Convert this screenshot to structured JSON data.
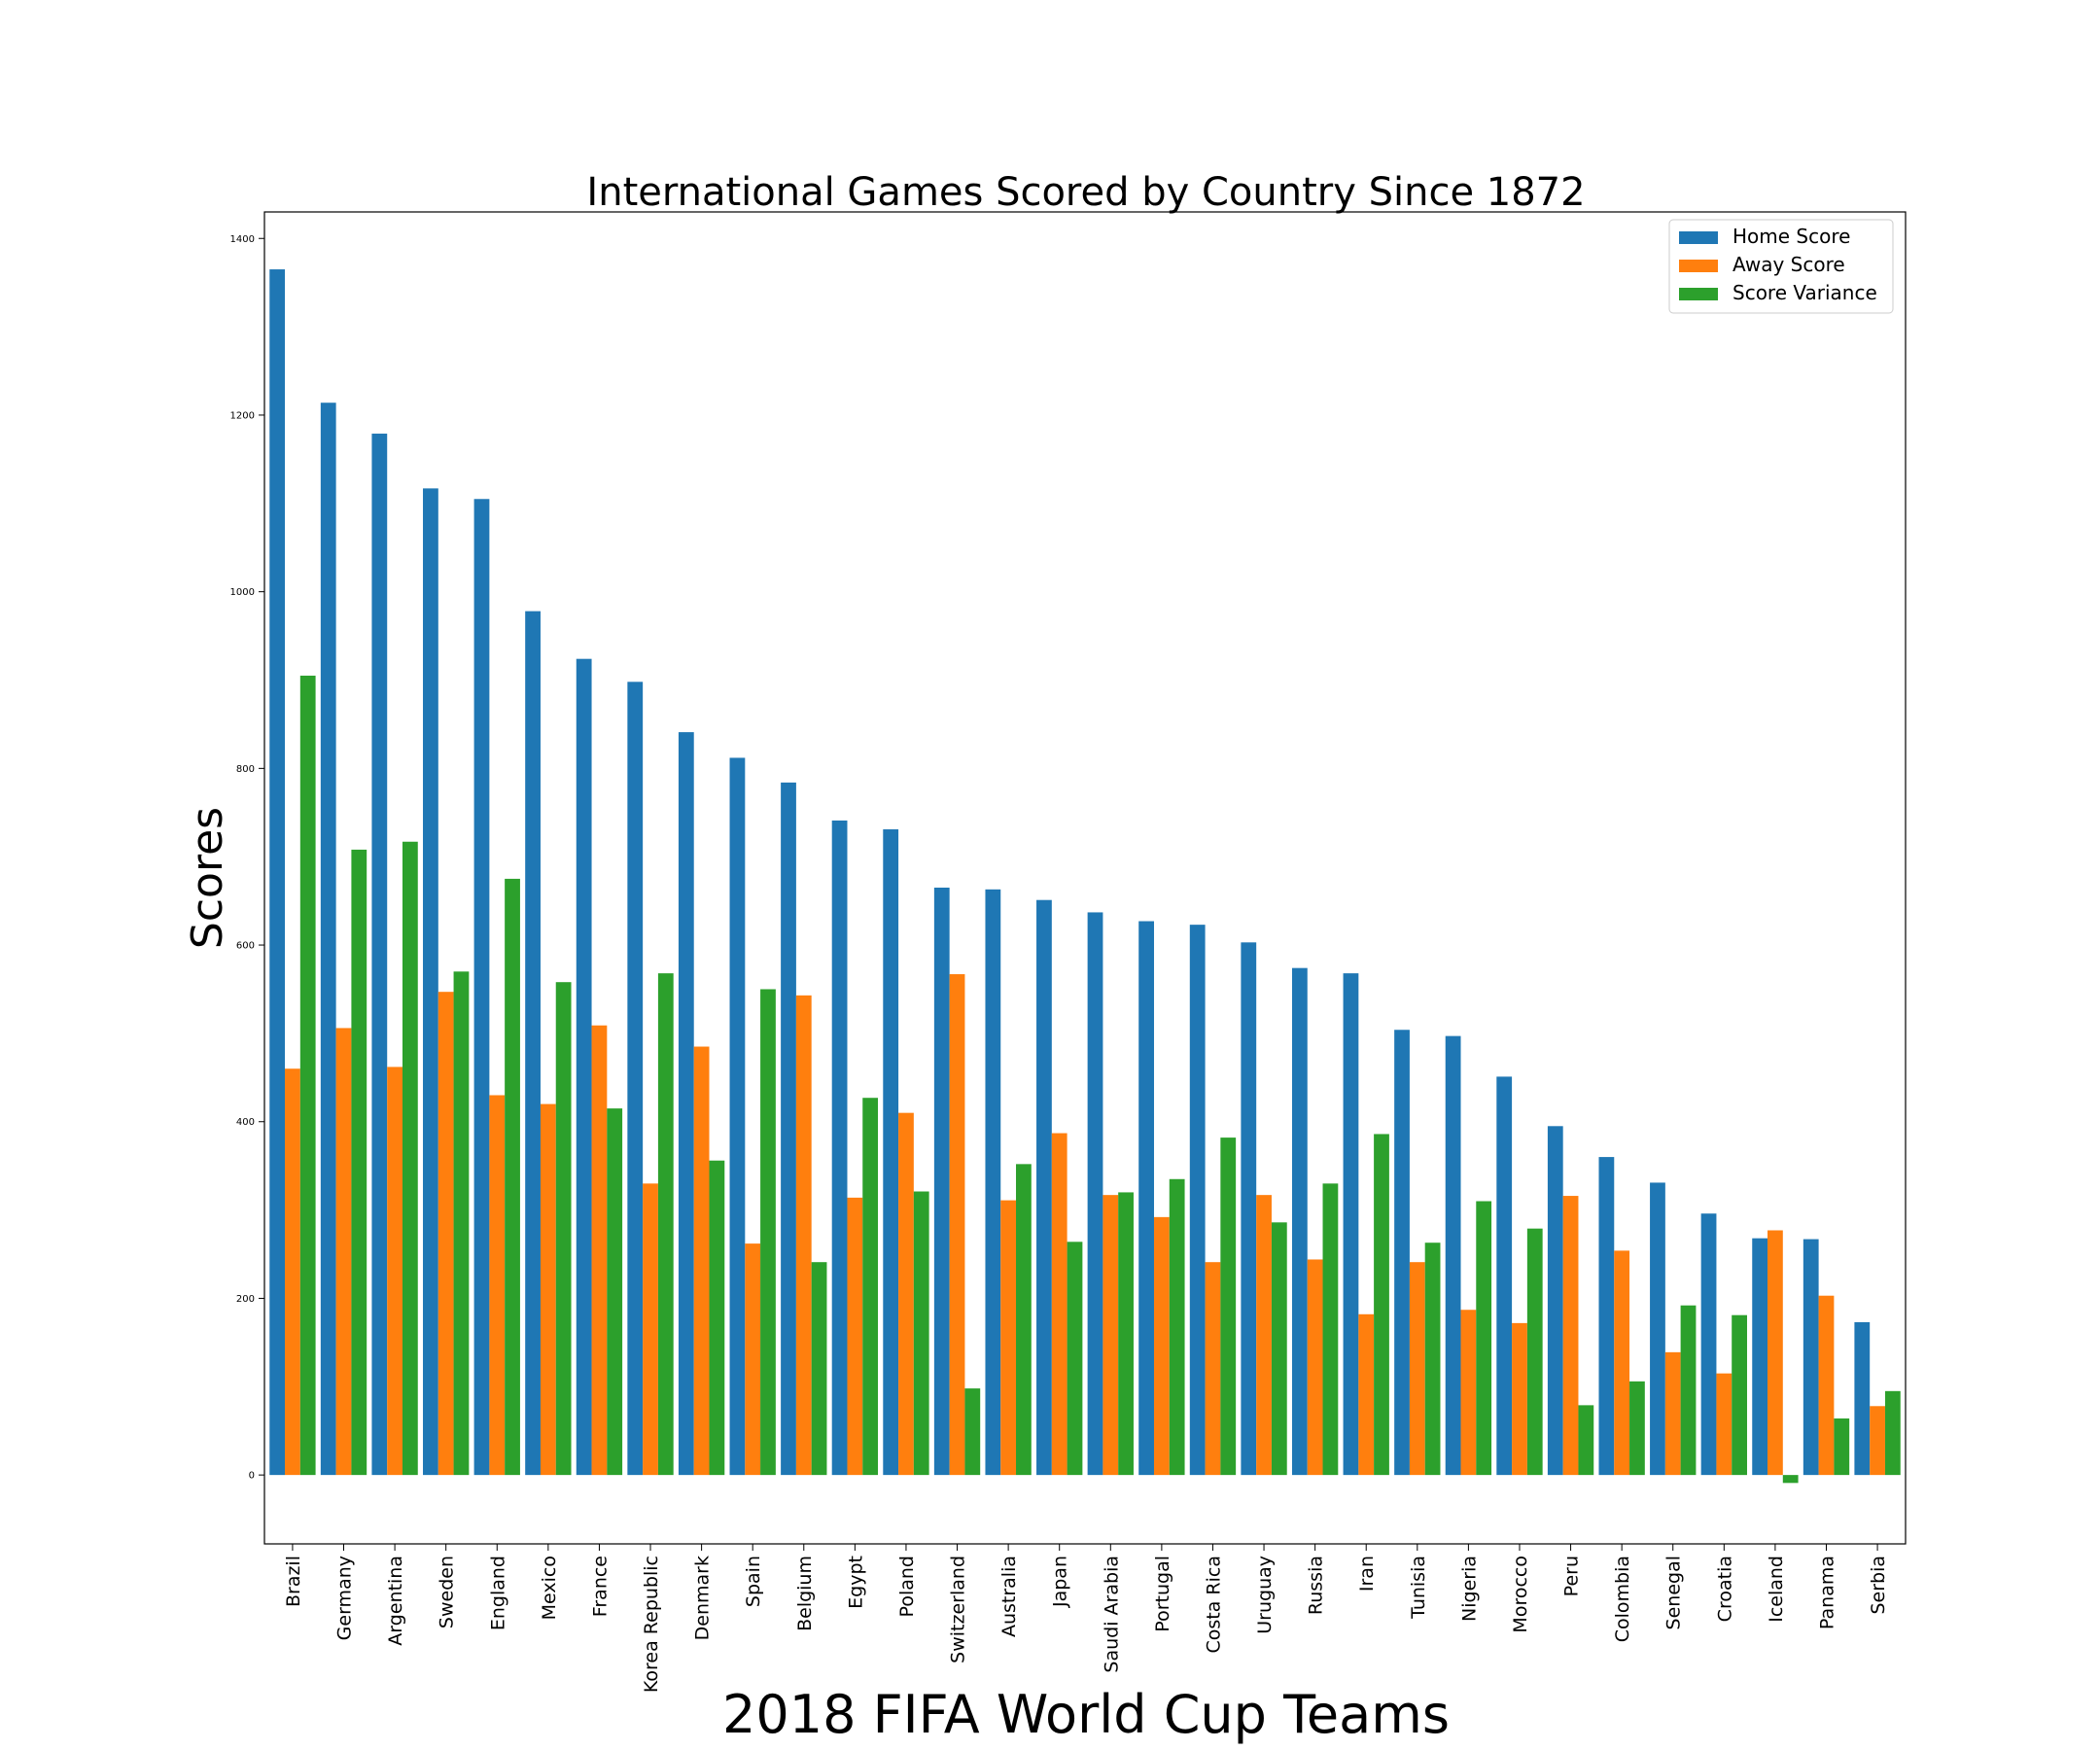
{
  "chart_data": {
    "type": "bar",
    "title": "International Games Scored by Country Since 1872",
    "xlabel": "2018 FIFA World Cup Teams",
    "ylabel": "Scores",
    "ylim": [
      -78,
      1430
    ],
    "yticks": [
      0,
      200,
      400,
      600,
      800,
      1000,
      1200,
      1400
    ],
    "legend_position": "top-right",
    "grid": false,
    "categories": [
      "Brazil",
      "Germany",
      "Argentina",
      "Sweden",
      "England",
      "Mexico",
      "France",
      "Korea Republic",
      "Denmark",
      "Spain",
      "Belgium",
      "Egypt",
      "Poland",
      "Switzerland",
      "Australia",
      "Japan",
      "Saudi Arabia",
      "Portugal",
      "Costa Rica",
      "Uruguay",
      "Russia",
      "Iran",
      "Tunisia",
      "Nigeria",
      "Morocco",
      "Peru",
      "Colombia",
      "Senegal",
      "Croatia",
      "Iceland",
      "Panama",
      "Serbia"
    ],
    "series": [
      {
        "name": "Home Score",
        "color": "#1f77b4",
        "values": [
          1365,
          1214,
          1179,
          1117,
          1105,
          978,
          924,
          898,
          841,
          812,
          784,
          741,
          731,
          665,
          663,
          651,
          637,
          627,
          623,
          603,
          574,
          568,
          504,
          497,
          451,
          395,
          360,
          331,
          296,
          268,
          267,
          173
        ]
      },
      {
        "name": "Away Score",
        "color": "#ff7f0e",
        "values": [
          460,
          506,
          462,
          547,
          430,
          420,
          509,
          330,
          485,
          262,
          543,
          314,
          410,
          567,
          311,
          387,
          317,
          292,
          241,
          317,
          244,
          182,
          241,
          187,
          172,
          316,
          254,
          139,
          115,
          277,
          203,
          78
        ]
      },
      {
        "name": "Score Variance",
        "color": "#2ca02c",
        "values": [
          905,
          708,
          717,
          570,
          675,
          558,
          415,
          568,
          356,
          550,
          241,
          427,
          321,
          98,
          352,
          264,
          320,
          335,
          382,
          286,
          330,
          386,
          263,
          310,
          279,
          79,
          106,
          192,
          181,
          -9,
          64,
          95
        ]
      }
    ]
  }
}
